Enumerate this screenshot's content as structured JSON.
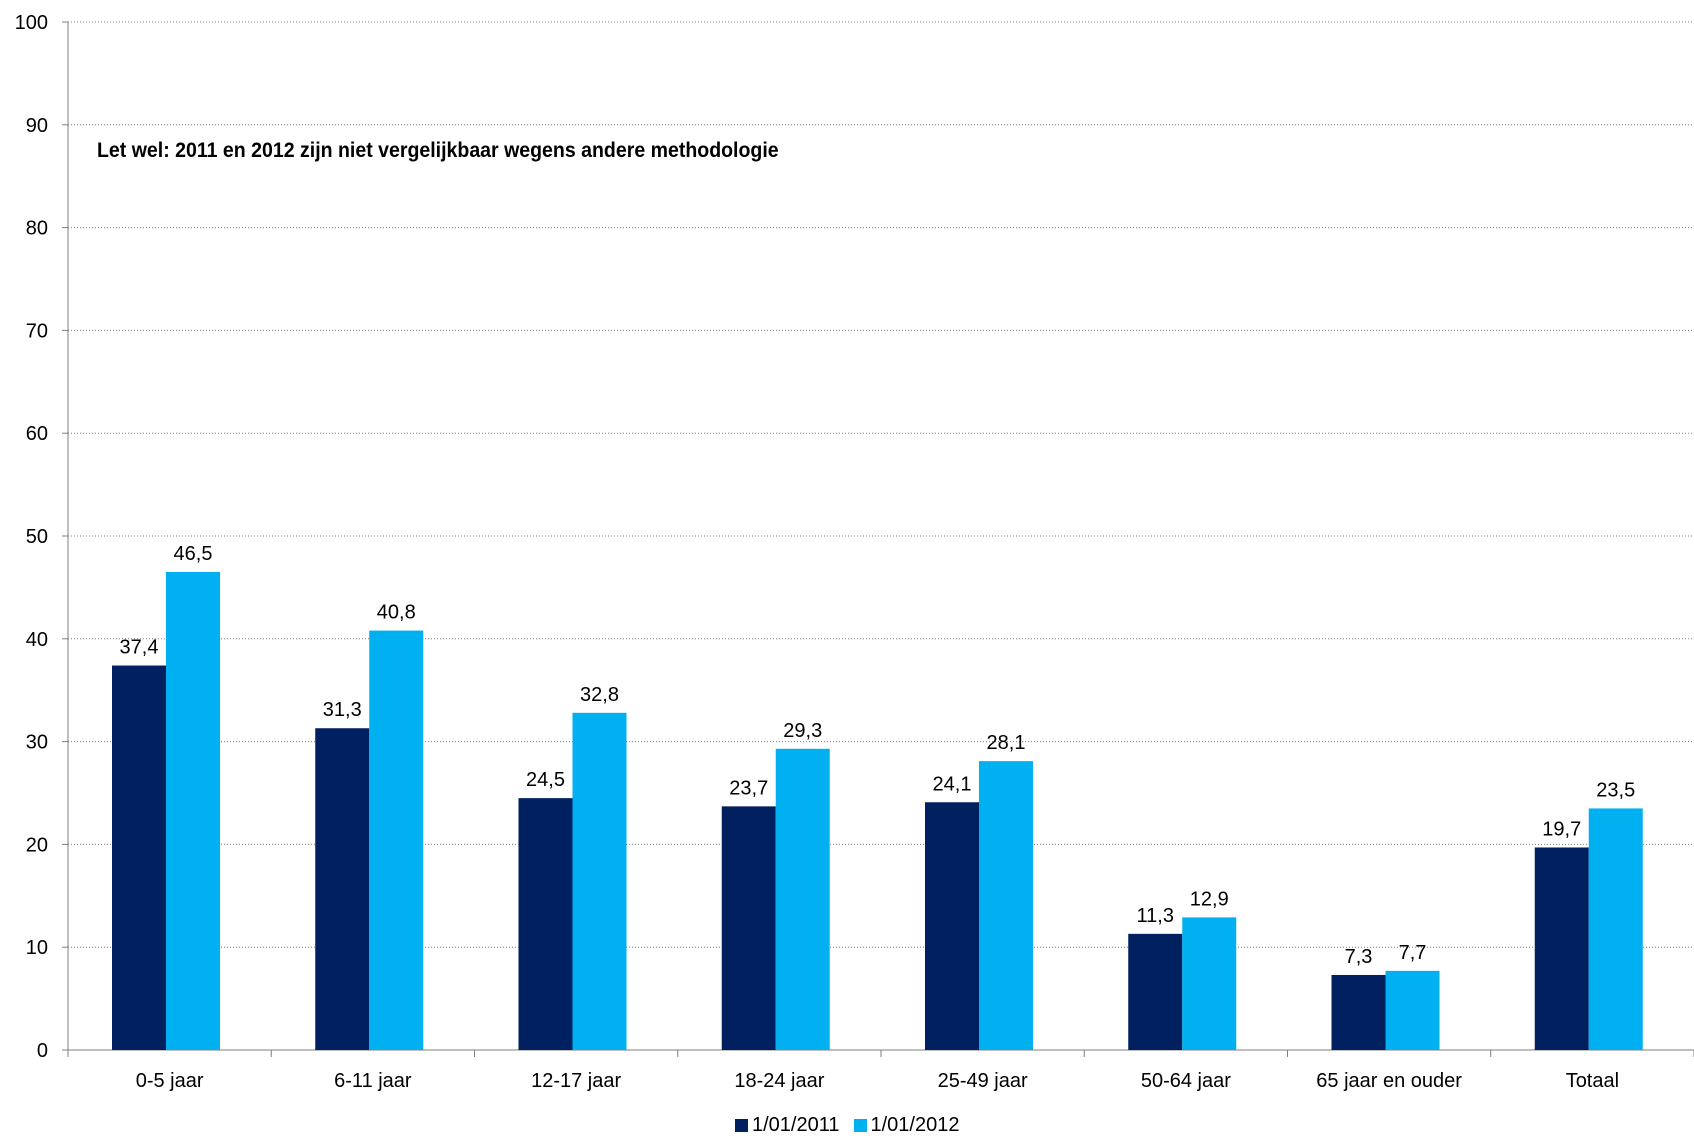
{
  "chart_data": {
    "type": "bar",
    "title": "",
    "xlabel": "",
    "ylabel": "",
    "ylim": [
      0,
      100
    ],
    "yticks": [
      0,
      10,
      20,
      30,
      40,
      50,
      60,
      70,
      80,
      90,
      100
    ],
    "grid": true,
    "categories": [
      "0-5 jaar",
      "6-11 jaar",
      "12-17 jaar",
      "18-24 jaar",
      "25-49 jaar",
      "50-64 jaar",
      "65 jaar en ouder",
      "Totaal"
    ],
    "series": [
      {
        "name": "1/01/2011",
        "color": "#002060",
        "values": [
          37.4,
          31.3,
          24.5,
          23.7,
          24.1,
          11.3,
          7.3,
          19.7
        ],
        "labels": [
          "37,4",
          "31,3",
          "24,5",
          "23,7",
          "24,1",
          "11,3",
          "7,3",
          "19,7"
        ]
      },
      {
        "name": "1/01/2012",
        "color": "#00B0F0",
        "values": [
          46.5,
          40.8,
          32.8,
          29.3,
          28.1,
          12.9,
          7.7,
          23.5
        ],
        "labels": [
          "46,5",
          "40,8",
          "32,8",
          "29,3",
          "28,1",
          "12,9",
          "7,7",
          "23,5"
        ]
      }
    ],
    "annotation": "Let wel: 2011 en 2012 zijn niet  vergelijkbaar wegens andere methodologie",
    "legend_position": "bottom"
  }
}
